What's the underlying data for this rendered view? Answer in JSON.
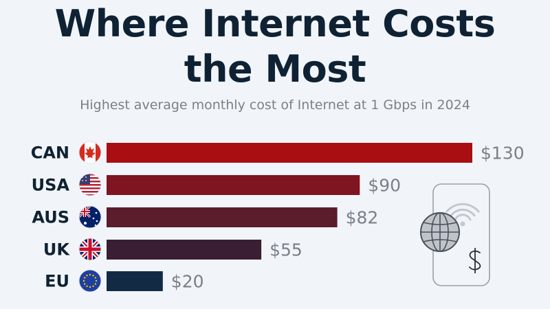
{
  "header": {
    "title_line1": "Where Internet Costs",
    "title_line2": "the Most",
    "subtitle": "Highest average monthly cost of Internet at 1 Gbps in 2024"
  },
  "chart_data": {
    "type": "bar",
    "orientation": "horizontal",
    "title": "Where Internet Costs the Most",
    "subtitle": "Highest average monthly cost of Internet at 1 Gbps in 2024",
    "categories": [
      "CAN",
      "USA",
      "AUS",
      "UK",
      "EU"
    ],
    "values": [
      130,
      90,
      82,
      55,
      20
    ],
    "value_labels": [
      "$130",
      "$90",
      "$82",
      "$55",
      "$20"
    ],
    "flags": [
      "canada-flag-icon",
      "usa-flag-icon",
      "australia-flag-icon",
      "uk-flag-icon",
      "eu-flag-icon"
    ],
    "bar_colors": [
      "#a80e12",
      "#7e1521",
      "#5b1c2b",
      "#3a1e33",
      "#132a45"
    ],
    "xlim": [
      0,
      130
    ],
    "grid": false,
    "xlabel": "",
    "ylabel": ""
  },
  "illustration": {
    "icon": "smartphone-globe-wifi-dollar-icon"
  }
}
